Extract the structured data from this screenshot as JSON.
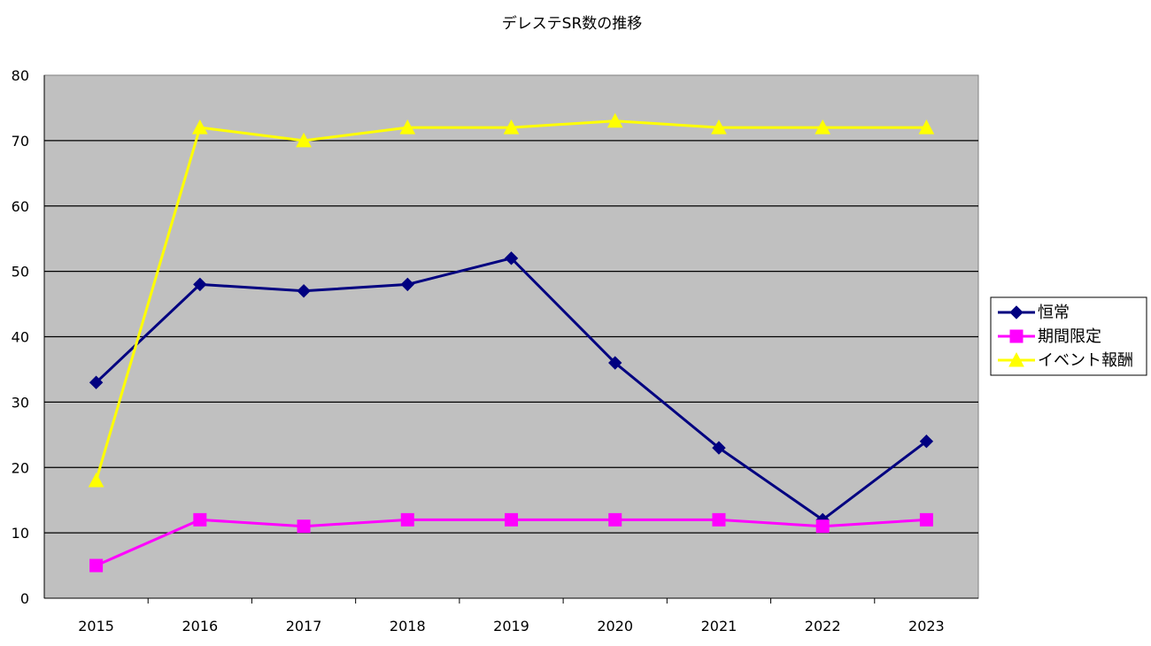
{
  "chart_data": {
    "type": "line",
    "title": "デレステSR数の推移",
    "xlabel": "",
    "ylabel": "",
    "categories": [
      "2015",
      "2016",
      "2017",
      "2018",
      "2019",
      "2020",
      "2021",
      "2022",
      "2023"
    ],
    "ylim": [
      0,
      80
    ],
    "yticks": [
      "0",
      "10",
      "20",
      "30",
      "40",
      "50",
      "60",
      "70",
      "80"
    ],
    "grid": true,
    "legend_position": "right",
    "plot_background": "#c0c0c0",
    "series": [
      {
        "name": "恒常",
        "values": [
          33,
          48,
          47,
          48,
          52,
          36,
          23,
          12,
          24
        ],
        "color": "#000080",
        "marker": "diamond"
      },
      {
        "name": "期間限定",
        "values": [
          5,
          12,
          11,
          12,
          12,
          12,
          12,
          11,
          12
        ],
        "color": "#ff00ff",
        "marker": "square"
      },
      {
        "name": "イベント報酬",
        "values": [
          18,
          72,
          70,
          72,
          72,
          73,
          72,
          72,
          72
        ],
        "color": "#ffff00",
        "marker": "triangle"
      }
    ]
  }
}
